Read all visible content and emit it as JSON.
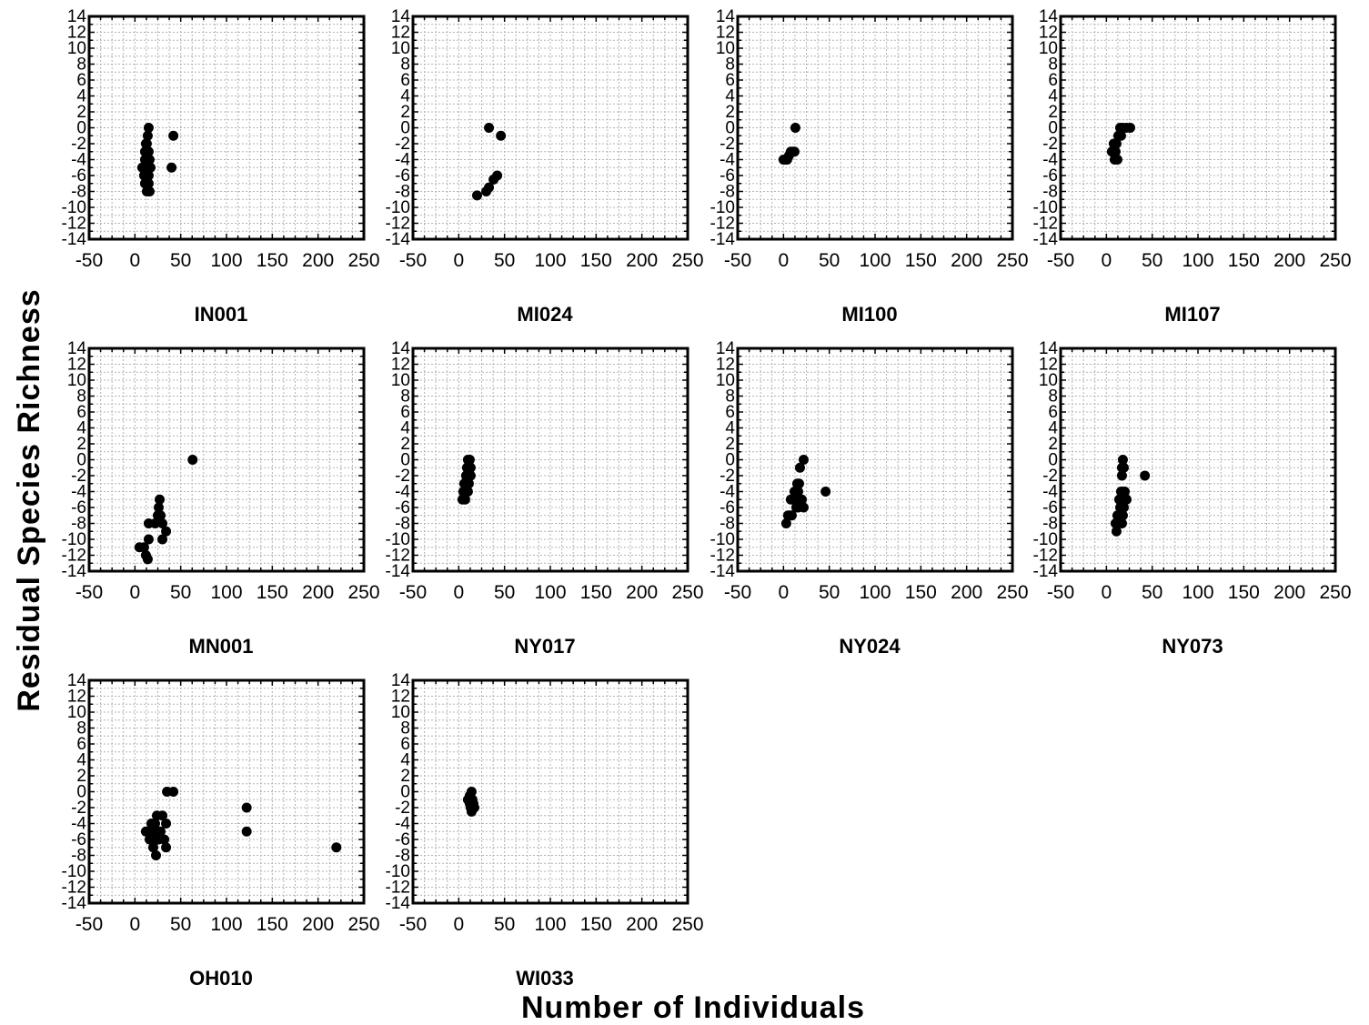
{
  "chart_data": {
    "type": "scatter",
    "xlabel": "Number of Individuals",
    "ylabel": "Residual Species Richness",
    "xlim": [
      -50,
      250
    ],
    "ylim": [
      -14,
      14
    ],
    "xticks": [
      "-50",
      "0",
      "50",
      "100",
      "150",
      "200",
      "250"
    ],
    "yticks": [
      "14",
      "12",
      "10",
      "8",
      "6",
      "4",
      "2",
      "0",
      "-2",
      "-4",
      "-6",
      "-8",
      "-10",
      "-12",
      "-14"
    ],
    "grid": true,
    "marker_color": "#000000",
    "panels": [
      {
        "title": "IN001",
        "x": [
          15,
          14,
          13,
          12,
          15,
          11,
          13,
          16,
          12,
          14,
          17,
          15,
          10,
          13,
          11,
          14,
          12,
          15,
          16,
          13,
          10,
          8,
          11,
          42,
          40
        ],
        "y": [
          0,
          -1,
          -2,
          -2,
          -3,
          -3,
          -4,
          -4,
          -5,
          -5,
          -5,
          -6,
          -6,
          -6,
          -7,
          -7,
          -7,
          -7,
          -8,
          -8,
          -5,
          -5,
          -4,
          -1,
          -5
        ]
      },
      {
        "title": "MI024",
        "x": [
          33,
          46,
          42,
          38,
          33,
          30,
          20
        ],
        "y": [
          0,
          -1,
          -6,
          -6.5,
          -7.5,
          -8,
          -8.5
        ]
      },
      {
        "title": "MI100",
        "x": [
          13,
          12,
          10,
          8,
          6,
          4,
          2,
          0
        ],
        "y": [
          0,
          -3,
          -3,
          -3,
          -3.5,
          -4,
          -4,
          -4
        ]
      },
      {
        "title": "MI107",
        "x": [
          26,
          22,
          18,
          15,
          16,
          13,
          11,
          8,
          6,
          10,
          12,
          9
        ],
        "y": [
          0,
          0,
          0,
          0,
          -1,
          -1,
          -2,
          -2,
          -3,
          -3,
          -4,
          -4
        ]
      },
      {
        "title": "MN001",
        "x": [
          63,
          27,
          26,
          25,
          28,
          30,
          22,
          34,
          30,
          15,
          15,
          10,
          5,
          12,
          14
        ],
        "y": [
          0,
          -5,
          -6,
          -7,
          -7,
          -8,
          -8,
          -9,
          -10,
          -8,
          -10,
          -11,
          -11,
          -12,
          -12.5
        ]
      },
      {
        "title": "NY017",
        "x": [
          10,
          12,
          13,
          9,
          11,
          13,
          8,
          10,
          12,
          7,
          9,
          11,
          6,
          8,
          10,
          5,
          7,
          4
        ],
        "y": [
          0,
          0,
          -1,
          -1,
          -1,
          -2,
          -2,
          -2,
          -2,
          -3,
          -3,
          -3,
          -3,
          -4,
          -4,
          -4,
          -5,
          -5
        ]
      },
      {
        "title": "NY024",
        "x": [
          22,
          18,
          17,
          15,
          12,
          14,
          16,
          13,
          10,
          12,
          8,
          20,
          16,
          22,
          14,
          9,
          5,
          7,
          3,
          46
        ],
        "y": [
          0,
          -1,
          -3,
          -3,
          -4,
          -4,
          -4,
          -5,
          -5,
          -5,
          -5,
          -5,
          -6,
          -6,
          -6,
          -7,
          -7,
          -7,
          -8,
          -4
        ]
      },
      {
        "title": "NY073",
        "x": [
          18,
          17,
          19,
          17,
          42,
          16,
          19,
          20,
          14,
          18,
          22,
          15,
          19,
          12,
          16,
          18,
          10,
          14,
          17,
          11
        ],
        "y": [
          0,
          -1,
          -1,
          -2,
          -2,
          -4,
          -4,
          -4,
          -5,
          -5,
          -5,
          -6,
          -6,
          -7,
          -7,
          -7,
          -8,
          -8,
          -8,
          -9
        ]
      },
      {
        "title": "OH010",
        "x": [
          35,
          42,
          122,
          122,
          220,
          24,
          30,
          18,
          22,
          34,
          15,
          26,
          20,
          28,
          12,
          18,
          24,
          32,
          16,
          22,
          26,
          34,
          20,
          23
        ],
        "y": [
          0,
          0,
          -2,
          -5,
          -7,
          -3,
          -3,
          -4,
          -4,
          -4,
          -5,
          -5,
          -5,
          -5,
          -5,
          -5,
          -6,
          -6,
          -6,
          -6,
          -6,
          -7,
          -7,
          -8
        ]
      },
      {
        "title": "WI033",
        "x": [
          14,
          12,
          15,
          10,
          12,
          16,
          13,
          17,
          14
        ],
        "y": [
          0,
          -0.5,
          -1,
          -1,
          -1.5,
          -1.5,
          -2,
          -2,
          -2.5
        ]
      }
    ]
  }
}
